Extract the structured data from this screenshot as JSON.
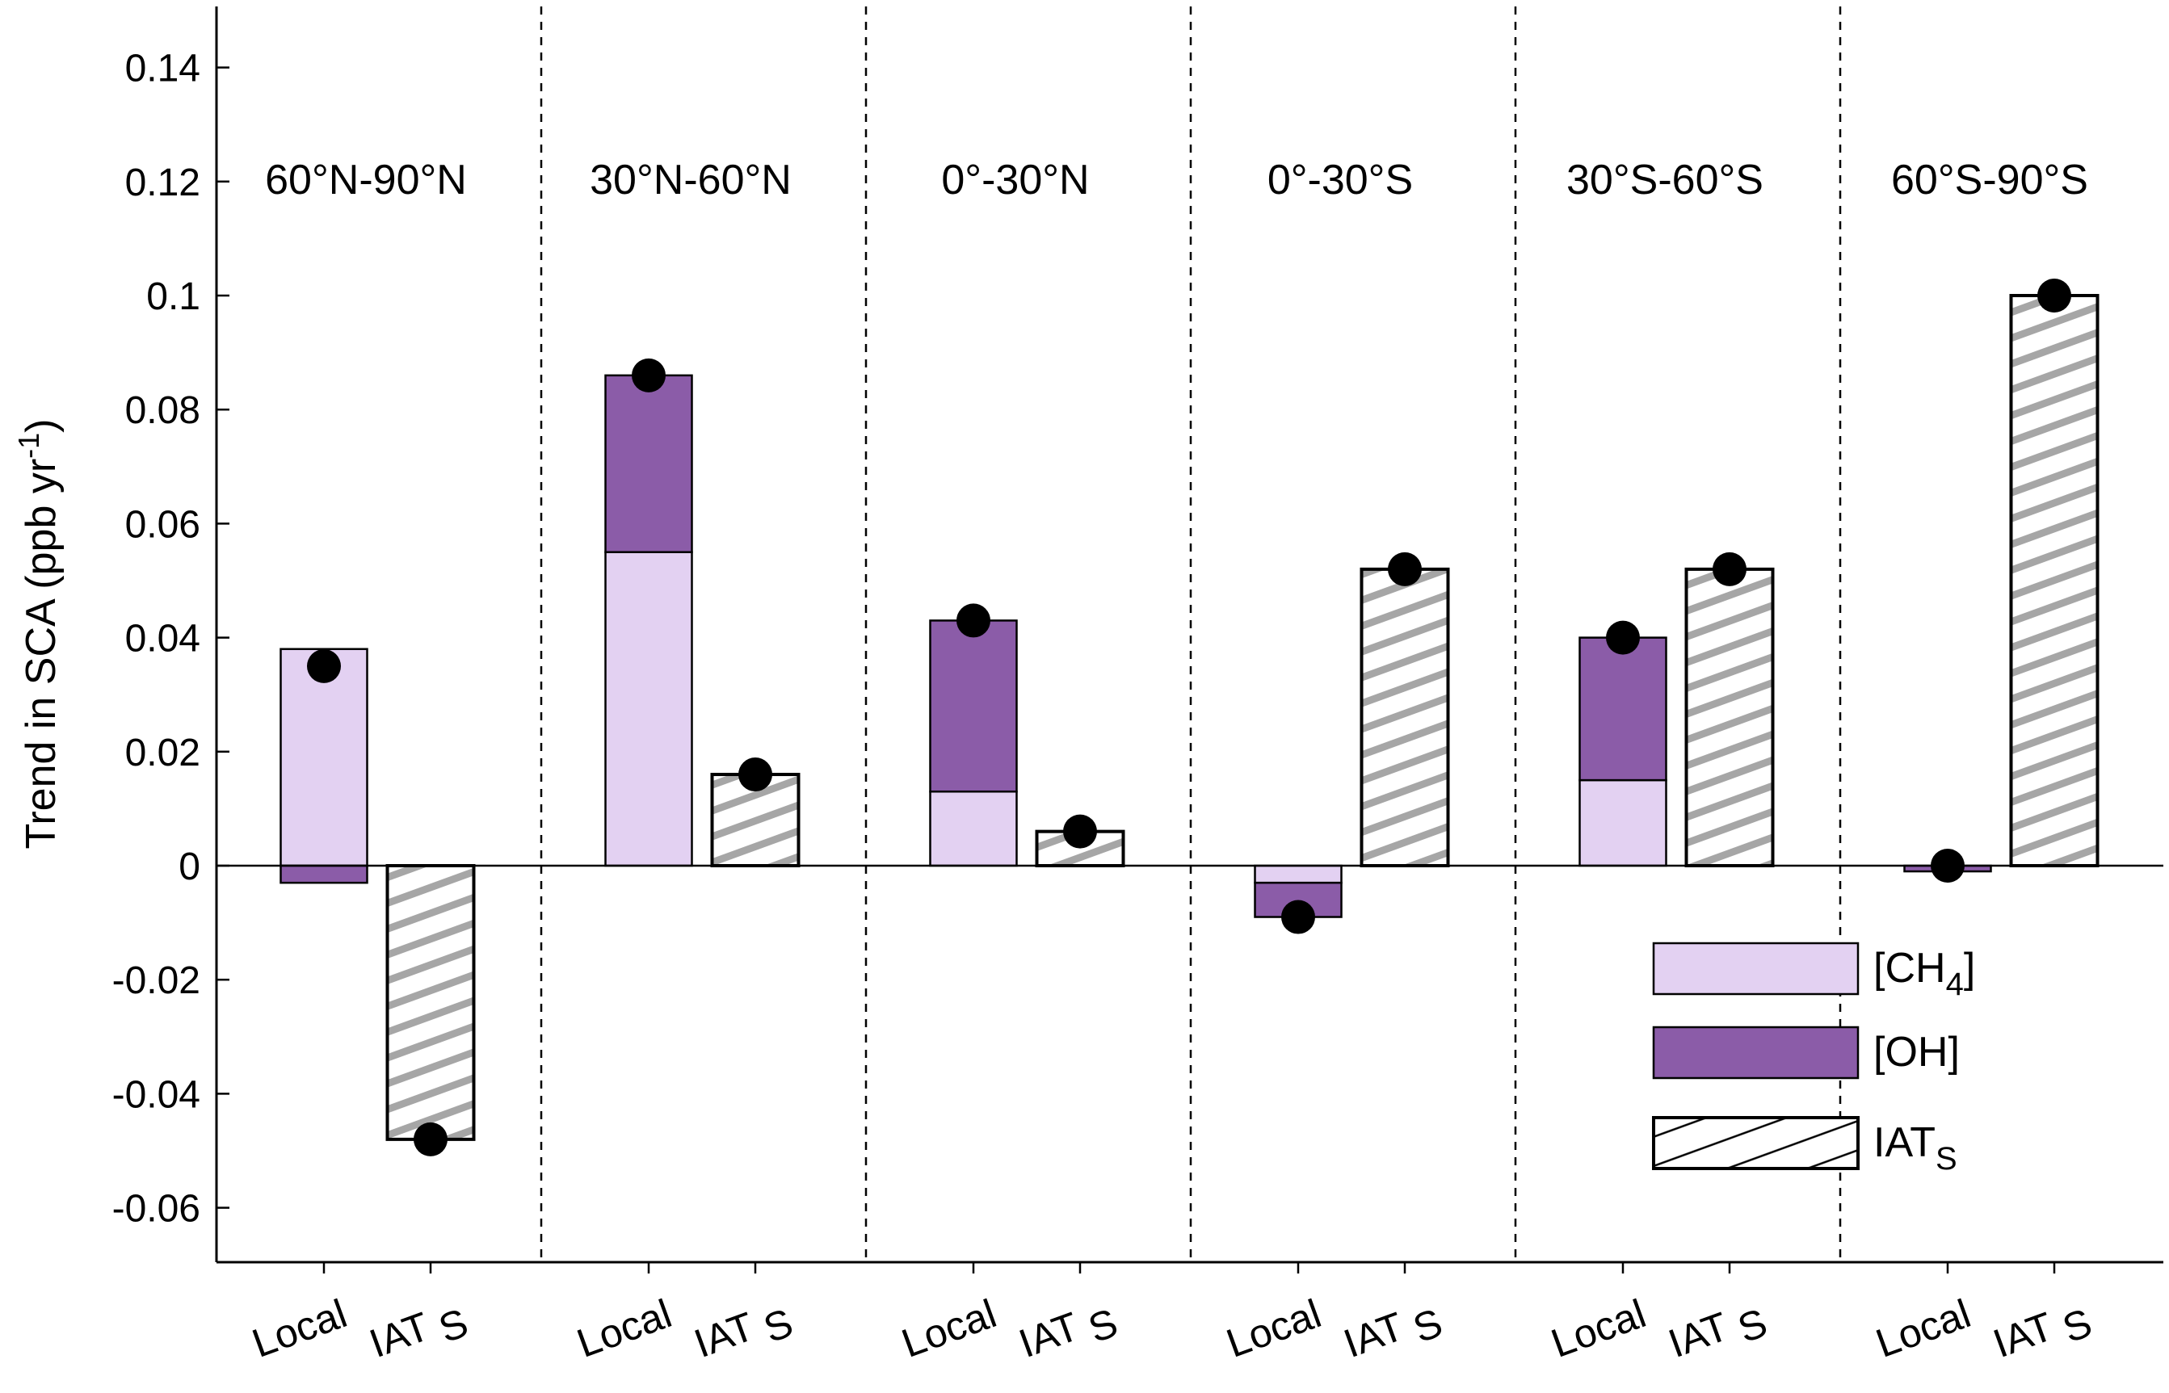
{
  "chart_data": {
    "type": "bar",
    "ylabel_main": "Trend in SCA (ppb yr",
    "ylabel_sup": "-1",
    "ylabel_close": ")",
    "ylim": [
      -0.07,
      0.15
    ],
    "yticks": [
      -0.06,
      -0.04,
      -0.02,
      0,
      0.02,
      0.04,
      0.06,
      0.08,
      0.1,
      0.12,
      0.14
    ],
    "ytick_labels": [
      "-0.06",
      "-0.04",
      "-0.02",
      "0",
      "0.02",
      "0.04",
      "0.06",
      "0.08",
      "0.1",
      "0.12",
      "0.14"
    ],
    "category_local": "Local",
    "category_iat_main": "IAT",
    "category_iat_sub": "S",
    "colors": {
      "ch4": "#e3d1f2",
      "oh": "#8b5ca8",
      "iat_fill": "#ffffff",
      "hatch": "#a6a6a6",
      "dot": "#000000"
    },
    "legend": [
      {
        "key": "ch4",
        "main": "[CH",
        "sub": "4",
        "close": "]"
      },
      {
        "key": "oh",
        "main": "[OH]",
        "sub": "",
        "close": ""
      },
      {
        "key": "iat",
        "main": "IAT",
        "sub": "S",
        "close": ""
      }
    ],
    "regions": [
      {
        "label": "60°N-90°N",
        "local": {
          "ch4": 0.038,
          "oh": -0.003
        },
        "local_total": 0.035,
        "iat": -0.048,
        "iat_total": -0.048
      },
      {
        "label": "30°N-60°N",
        "local": {
          "ch4": 0.055,
          "oh": 0.031
        },
        "local_total": 0.086,
        "iat": 0.016,
        "iat_total": 0.016
      },
      {
        "label": "0°-30°N",
        "local": {
          "ch4": 0.013,
          "oh": 0.03
        },
        "local_total": 0.043,
        "iat": 0.006,
        "iat_total": 0.006
      },
      {
        "label": "0°-30°S",
        "local": {
          "ch4": -0.003,
          "oh": -0.006
        },
        "local_total": -0.009,
        "iat": 0.052,
        "iat_total": 0.052
      },
      {
        "label": "30°S-60°S",
        "local": {
          "ch4": 0.015,
          "oh": 0.025
        },
        "local_total": 0.04,
        "iat": 0.052,
        "iat_total": 0.052
      },
      {
        "label": "60°S-90°S",
        "local": {
          "ch4": 0.0,
          "oh": -0.001
        },
        "local_total": 0.0,
        "iat": 0.1,
        "iat_total": 0.1
      }
    ]
  }
}
